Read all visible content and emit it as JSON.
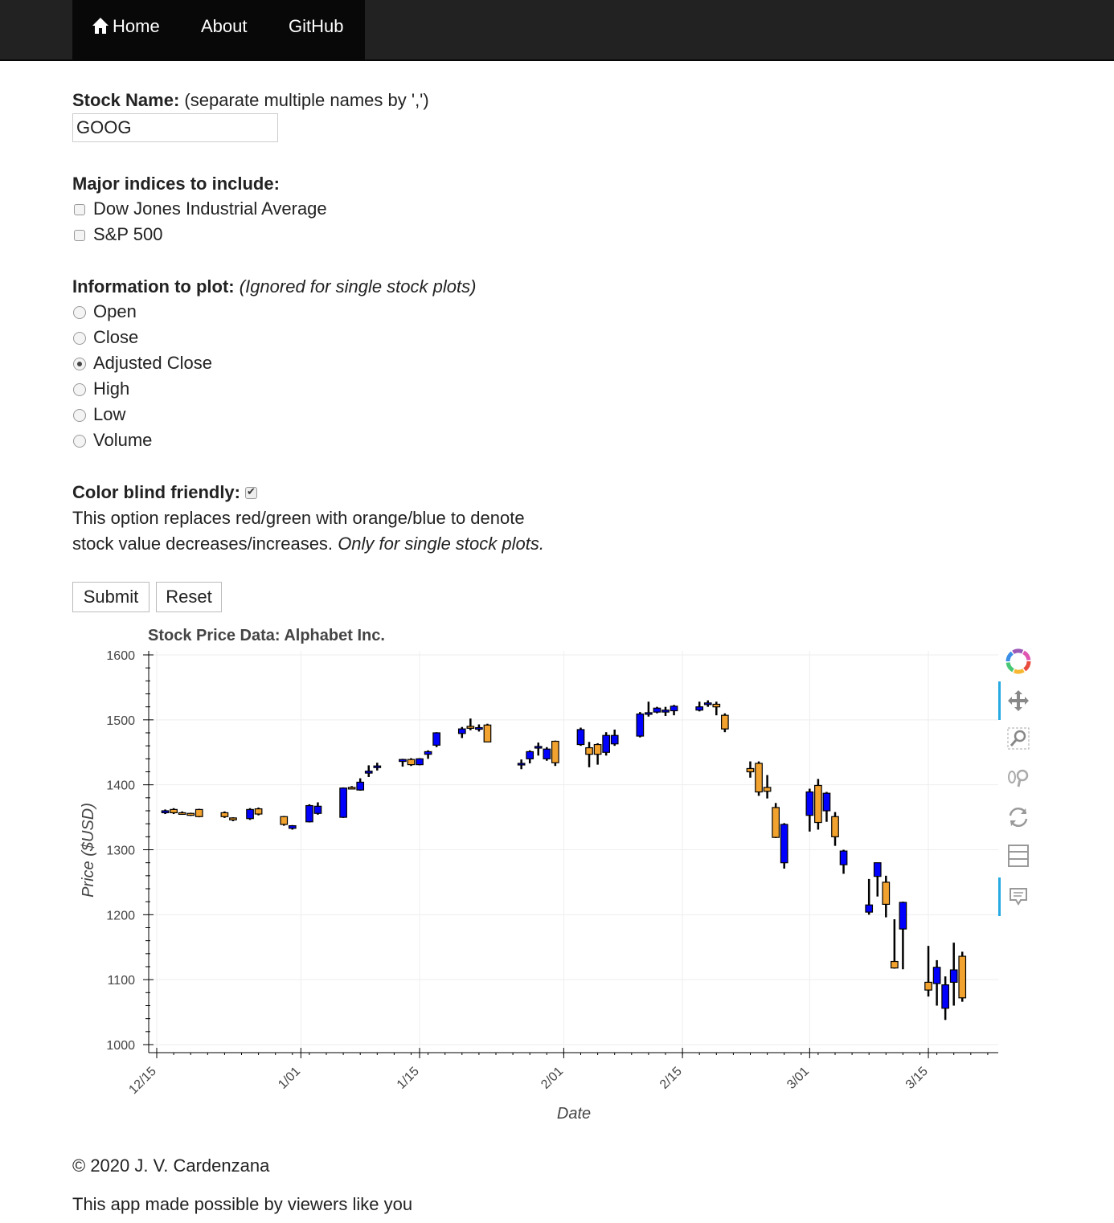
{
  "nav": {
    "home": "Home",
    "about": "About",
    "github": "GitHub"
  },
  "form": {
    "stock_label": "Stock Name:",
    "stock_hint": "(separate multiple names by ',')",
    "stock_value": "GOOG",
    "indices_label": "Major indices to include:",
    "indices": [
      {
        "label": "Dow Jones Industrial Average",
        "checked": false
      },
      {
        "label": "S&P 500",
        "checked": false
      }
    ],
    "info_label": "Information to plot:",
    "info_hint": "(Ignored for single stock plots)",
    "info_options": [
      "Open",
      "Close",
      "Adjusted Close",
      "High",
      "Low",
      "Volume"
    ],
    "info_selected": "Adjusted Close",
    "colorblind_label": "Color blind friendly:",
    "colorblind_checked": true,
    "colorblind_desc_1": "This option replaces red/green with orange/blue to denote",
    "colorblind_desc_2": "stock value decreases/increases.",
    "colorblind_desc_italic": "Only for single stock plots.",
    "submit": "Submit",
    "reset": "Reset"
  },
  "chart_data": {
    "type": "candlestick",
    "title": "Stock Price Data: Alphabet Inc.",
    "xlabel": "Date",
    "ylabel": "Price ($USD)",
    "ylim": [
      1000,
      1600
    ],
    "yticks": [
      1000,
      1100,
      1200,
      1300,
      1400,
      1500,
      1600
    ],
    "xticks": [
      "12/15",
      "1/01",
      "1/15",
      "2/01",
      "2/15",
      "3/01",
      "3/15"
    ],
    "xtick_days": [
      0,
      17,
      31,
      48,
      62,
      77,
      91
    ],
    "increase_color": "#0000ff",
    "decrease_color": "#f2a22e",
    "grid": true,
    "candles": [
      {
        "day": 1,
        "open": 1357,
        "close": 1360,
        "high": 1362,
        "low": 1355
      },
      {
        "day": 2,
        "open": 1362,
        "close": 1357,
        "high": 1364,
        "low": 1355
      },
      {
        "day": 3,
        "open": 1357,
        "close": 1355,
        "high": 1359,
        "low": 1354
      },
      {
        "day": 4,
        "open": 1356,
        "close": 1353,
        "high": 1357,
        "low": 1352
      },
      {
        "day": 5,
        "open": 1362,
        "close": 1351,
        "high": 1363,
        "low": 1350
      },
      {
        "day": 8,
        "open": 1357,
        "close": 1351,
        "high": 1359,
        "low": 1349
      },
      {
        "day": 9,
        "open": 1349,
        "close": 1346,
        "high": 1350,
        "low": 1344
      },
      {
        "day": 11,
        "open": 1348,
        "close": 1362,
        "high": 1364,
        "low": 1346
      },
      {
        "day": 12,
        "open": 1363,
        "close": 1355,
        "high": 1365,
        "low": 1353
      },
      {
        "day": 15,
        "open": 1351,
        "close": 1339,
        "high": 1352,
        "low": 1337
      },
      {
        "day": 16,
        "open": 1333,
        "close": 1337,
        "high": 1338,
        "low": 1331
      },
      {
        "day": 18,
        "open": 1343,
        "close": 1368,
        "high": 1370,
        "low": 1342
      },
      {
        "day": 19,
        "open": 1356,
        "close": 1367,
        "high": 1373,
        "low": 1354
      },
      {
        "day": 22,
        "open": 1350,
        "close": 1395,
        "high": 1396,
        "low": 1349
      },
      {
        "day": 23,
        "open": 1396,
        "close": 1394,
        "high": 1398,
        "low": 1393
      },
      {
        "day": 24,
        "open": 1392,
        "close": 1404,
        "high": 1410,
        "low": 1391
      },
      {
        "day": 25,
        "open": 1418,
        "close": 1421,
        "high": 1430,
        "low": 1412
      },
      {
        "day": 26,
        "open": 1427,
        "close": 1429,
        "high": 1434,
        "low": 1422
      },
      {
        "day": 29,
        "open": 1436,
        "close": 1439,
        "high": 1440,
        "low": 1428
      },
      {
        "day": 30,
        "open": 1439,
        "close": 1431,
        "high": 1441,
        "low": 1429
      },
      {
        "day": 31,
        "open": 1431,
        "close": 1440,
        "high": 1441,
        "low": 1430
      },
      {
        "day": 32,
        "open": 1447,
        "close": 1451,
        "high": 1453,
        "low": 1440
      },
      {
        "day": 33,
        "open": 1461,
        "close": 1480,
        "high": 1481,
        "low": 1458
      },
      {
        "day": 36,
        "open": 1479,
        "close": 1486,
        "high": 1489,
        "low": 1472
      },
      {
        "day": 37,
        "open": 1490,
        "close": 1487,
        "high": 1502,
        "low": 1484
      },
      {
        "day": 38,
        "open": 1487,
        "close": 1488,
        "high": 1493,
        "low": 1482
      },
      {
        "day": 39,
        "open": 1492,
        "close": 1466,
        "high": 1494,
        "low": 1466
      },
      {
        "day": 43,
        "open": 1432,
        "close": 1433,
        "high": 1439,
        "low": 1424
      },
      {
        "day": 44,
        "open": 1440,
        "close": 1451,
        "high": 1453,
        "low": 1433
      },
      {
        "day": 45,
        "open": 1457,
        "close": 1459,
        "high": 1465,
        "low": 1445
      },
      {
        "day": 46,
        "open": 1440,
        "close": 1455,
        "high": 1458,
        "low": 1437
      },
      {
        "day": 47,
        "open": 1467,
        "close": 1434,
        "high": 1468,
        "low": 1429
      },
      {
        "day": 50,
        "open": 1462,
        "close": 1485,
        "high": 1488,
        "low": 1460
      },
      {
        "day": 51,
        "open": 1457,
        "close": 1447,
        "high": 1466,
        "low": 1427
      },
      {
        "day": 52,
        "open": 1462,
        "close": 1447,
        "high": 1464,
        "low": 1431
      },
      {
        "day": 53,
        "open": 1450,
        "close": 1476,
        "high": 1481,
        "low": 1445
      },
      {
        "day": 54,
        "open": 1463,
        "close": 1476,
        "high": 1485,
        "low": 1460
      },
      {
        "day": 57,
        "open": 1475,
        "close": 1509,
        "high": 1512,
        "low": 1473
      },
      {
        "day": 58,
        "open": 1510,
        "close": 1511,
        "high": 1528,
        "low": 1505
      },
      {
        "day": 59,
        "open": 1512,
        "close": 1518,
        "high": 1520,
        "low": 1510
      },
      {
        "day": 60,
        "open": 1512,
        "close": 1515,
        "high": 1520,
        "low": 1506
      },
      {
        "day": 61,
        "open": 1514,
        "close": 1521,
        "high": 1523,
        "low": 1507
      },
      {
        "day": 64,
        "open": 1515,
        "close": 1520,
        "high": 1528,
        "low": 1513
      },
      {
        "day": 65,
        "open": 1524,
        "close": 1526,
        "high": 1530,
        "low": 1520
      },
      {
        "day": 66,
        "open": 1524,
        "close": 1520,
        "high": 1528,
        "low": 1507
      },
      {
        "day": 67,
        "open": 1507,
        "close": 1486,
        "high": 1510,
        "low": 1481
      },
      {
        "day": 70,
        "open": 1425,
        "close": 1420,
        "high": 1436,
        "low": 1411
      },
      {
        "day": 71,
        "open": 1433,
        "close": 1389,
        "high": 1436,
        "low": 1383
      },
      {
        "day": 72,
        "open": 1396,
        "close": 1390,
        "high": 1415,
        "low": 1379
      },
      {
        "day": 73,
        "open": 1365,
        "close": 1319,
        "high": 1372,
        "low": 1318
      },
      {
        "day": 74,
        "open": 1280,
        "close": 1339,
        "high": 1341,
        "low": 1271
      },
      {
        "day": 77,
        "open": 1353,
        "close": 1389,
        "high": 1394,
        "low": 1328
      },
      {
        "day": 78,
        "open": 1399,
        "close": 1342,
        "high": 1409,
        "low": 1331
      },
      {
        "day": 79,
        "open": 1360,
        "close": 1387,
        "high": 1389,
        "low": 1343
      },
      {
        "day": 80,
        "open": 1351,
        "close": 1320,
        "high": 1358,
        "low": 1306
      },
      {
        "day": 81,
        "open": 1277,
        "close": 1298,
        "high": 1300,
        "low": 1263
      },
      {
        "day": 84,
        "open": 1204,
        "close": 1215,
        "high": 1255,
        "low": 1200
      },
      {
        "day": 85,
        "open": 1259,
        "close": 1280,
        "high": 1280,
        "low": 1228
      },
      {
        "day": 86,
        "open": 1250,
        "close": 1216,
        "high": 1260,
        "low": 1196
      },
      {
        "day": 87,
        "open": 1128,
        "close": 1118,
        "high": 1193,
        "low": 1117
      },
      {
        "day": 88,
        "open": 1178,
        "close": 1219,
        "high": 1220,
        "low": 1116
      },
      {
        "day": 91,
        "open": 1096,
        "close": 1084,
        "high": 1152,
        "low": 1074
      },
      {
        "day": 92,
        "open": 1094,
        "close": 1119,
        "high": 1130,
        "low": 1060
      },
      {
        "day": 93,
        "open": 1056,
        "close": 1092,
        "high": 1105,
        "low": 1038
      },
      {
        "day": 94,
        "open": 1096,
        "close": 1115,
        "high": 1157,
        "low": 1060
      },
      {
        "day": 95,
        "open": 1136,
        "close": 1072,
        "high": 1143,
        "low": 1066
      }
    ]
  },
  "toolbar": {
    "tools": [
      "bokeh-logo-icon",
      "pan-icon",
      "box-zoom-icon",
      "wheel-zoom-icon",
      "reset-icon",
      "save-icon",
      "hover-icon"
    ]
  },
  "footer": {
    "copyright": "© 2020 J. V. Cardenzana",
    "tagline": "This app made possible by viewers like you"
  }
}
